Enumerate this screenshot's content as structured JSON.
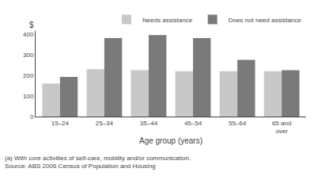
{
  "chart_data": {
    "type": "bar",
    "xlabel": "Age group (years)",
    "ylabel": "$",
    "categories": [
      "15–24",
      "25–34",
      "35–44",
      "45–54",
      "55–64",
      "65 and\nover"
    ],
    "series": [
      {
        "name": "Needs assistance",
        "color": "#c8c8c8",
        "values": [
          160,
          230,
          225,
          220,
          220,
          220
        ]
      },
      {
        "name": "Does not need assistance",
        "color": "#7a7a7a",
        "values": [
          192,
          380,
          395,
          380,
          275,
          225
        ]
      }
    ],
    "ylim": [
      0,
      415
    ],
    "yticks": [
      0,
      100,
      200,
      300,
      400
    ],
    "grid": false,
    "legend": "upper right",
    "annotations": [
      "(a) With core activities of self-care, mobility and/or communication.",
      "Source: ABS 2006 Census of Population and Housing"
    ]
  }
}
